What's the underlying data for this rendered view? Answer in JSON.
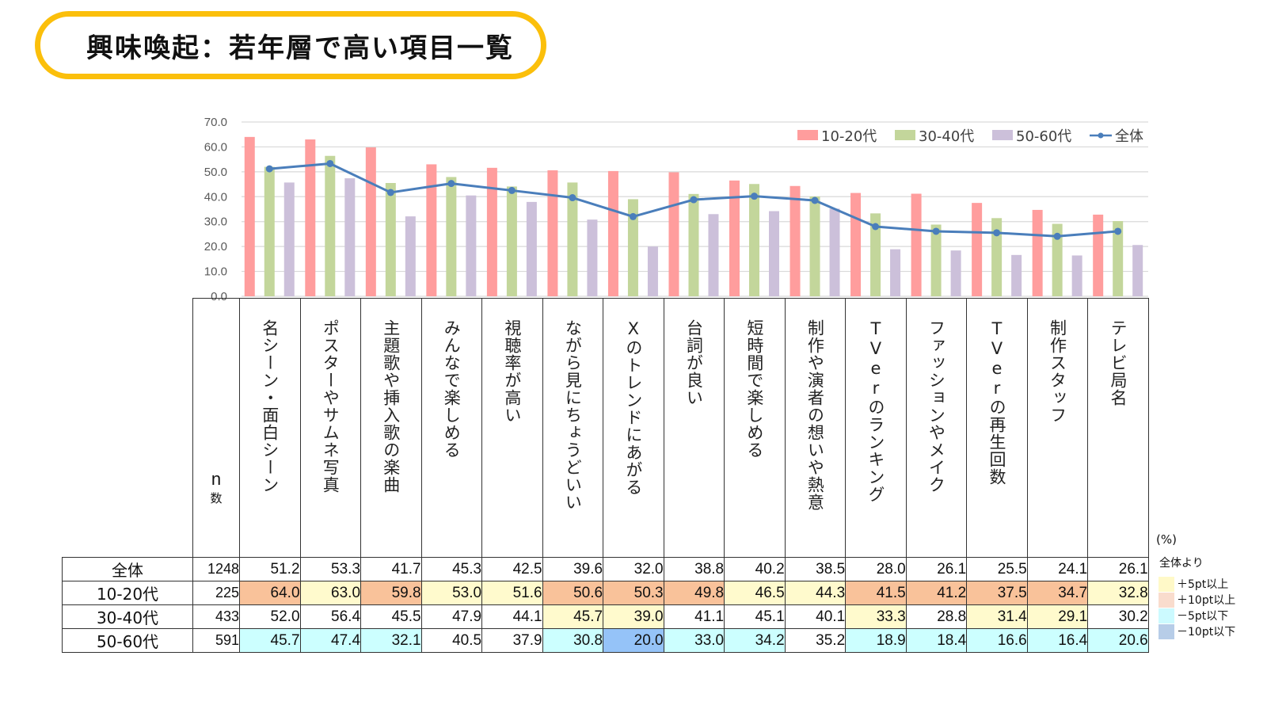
{
  "title": "興味喚起：若年層で高い項目一覧",
  "chart_data": {
    "type": "bar",
    "title": "興味喚起：若年層で高い項目一覧",
    "categories": [
      "名シーン・面白シーン",
      "ポスターやサムネ写真",
      "主題歌や挿入歌の楽曲",
      "みんなで楽しめる",
      "視聴率が高い",
      "ながら見にちょうどいい",
      "Xのトレンドにあがる",
      "台詞が良い",
      "短時間で楽しめる",
      "制作や演者の想いや熱意",
      "TVerのランキング",
      "ファッションやメイク",
      "TVerの再生回数",
      "制作スタッフ",
      "テレビ局名"
    ],
    "series": [
      {
        "name": "10-20代",
        "type": "bar",
        "color": "#FF9D9D",
        "values": [
          64.0,
          63.0,
          59.8,
          53.0,
          51.6,
          50.6,
          50.3,
          49.8,
          46.5,
          44.3,
          41.5,
          41.2,
          37.5,
          34.7,
          32.8
        ]
      },
      {
        "name": "30-40代",
        "type": "bar",
        "color": "#C3D69B",
        "values": [
          52.0,
          56.4,
          45.5,
          47.9,
          44.1,
          45.7,
          39.0,
          41.1,
          45.1,
          40.1,
          33.3,
          28.8,
          31.4,
          29.1,
          30.2
        ]
      },
      {
        "name": "50-60代",
        "type": "bar",
        "color": "#CCC0DA",
        "values": [
          45.7,
          47.4,
          32.1,
          40.5,
          37.9,
          30.8,
          20.0,
          33.0,
          34.2,
          35.2,
          18.9,
          18.4,
          16.6,
          16.4,
          20.6
        ]
      },
      {
        "name": "全体",
        "type": "line",
        "color": "#4A7EBB",
        "values": [
          51.2,
          53.3,
          41.7,
          45.3,
          42.5,
          39.6,
          32.0,
          38.8,
          40.2,
          38.5,
          28.0,
          26.1,
          25.5,
          24.1,
          26.1
        ]
      }
    ],
    "yticks": [
      "0.0",
      "10.0",
      "20.0",
      "30.0",
      "40.0",
      "50.0",
      "60.0",
      "70.0"
    ],
    "ylim": [
      0,
      70
    ],
    "xlabel": "",
    "ylabel": "",
    "grid": true,
    "legend": "top-right"
  },
  "table": {
    "n_header": [
      "n",
      "数"
    ],
    "rows": [
      {
        "label": "全体",
        "n": "1248",
        "cells": [
          "51.2",
          "53.3",
          "41.7",
          "45.3",
          "42.5",
          "39.6",
          "32.0",
          "38.8",
          "40.2",
          "38.5",
          "28.0",
          "26.1",
          "25.5",
          "24.1",
          "26.1"
        ],
        "flags": [
          "",
          "",
          "",
          "",
          "",
          "",
          "",
          "",
          "",
          "",
          "",
          "",
          "",
          "",
          ""
        ]
      },
      {
        "label": "10-20代",
        "n": "225",
        "cells": [
          "64.0",
          "63.0",
          "59.8",
          "53.0",
          "51.6",
          "50.6",
          "50.3",
          "49.8",
          "46.5",
          "44.3",
          "41.5",
          "41.2",
          "37.5",
          "34.7",
          "32.8"
        ],
        "flags": [
          "o",
          "y",
          "o",
          "y",
          "y",
          "o",
          "o",
          "o",
          "y",
          "y",
          "o",
          "o",
          "o",
          "o",
          "y"
        ]
      },
      {
        "label": "30-40代",
        "n": "433",
        "cells": [
          "52.0",
          "56.4",
          "45.5",
          "47.9",
          "44.1",
          "45.7",
          "39.0",
          "41.1",
          "45.1",
          "40.1",
          "33.3",
          "28.8",
          "31.4",
          "29.1",
          "30.2"
        ],
        "flags": [
          "",
          "",
          "",
          "",
          "",
          "y",
          "y",
          "",
          "",
          "",
          "y",
          "",
          "y",
          "y",
          ""
        ]
      },
      {
        "label": "50-60代",
        "n": "591",
        "cells": [
          "45.7",
          "47.4",
          "32.1",
          "40.5",
          "37.9",
          "30.8",
          "20.0",
          "33.0",
          "34.2",
          "35.2",
          "18.9",
          "18.4",
          "16.6",
          "16.4",
          "20.6"
        ],
        "flags": [
          "c",
          "c",
          "c",
          "",
          "",
          "c",
          "b",
          "c",
          "c",
          "",
          "c",
          "c",
          "c",
          "c",
          "c"
        ]
      }
    ]
  },
  "highlight_legend": {
    "unit": "(%)",
    "title": "全体より",
    "items": [
      {
        "label": "＋5pt以上",
        "color": "#FFF9C8"
      },
      {
        "label": "＋10pt以上",
        "color": "#F9DCCD"
      },
      {
        "label": "－5pt以下",
        "color": "#CCFAFF"
      },
      {
        "label": "－10pt以下",
        "color": "#B7CDE8"
      }
    ]
  }
}
